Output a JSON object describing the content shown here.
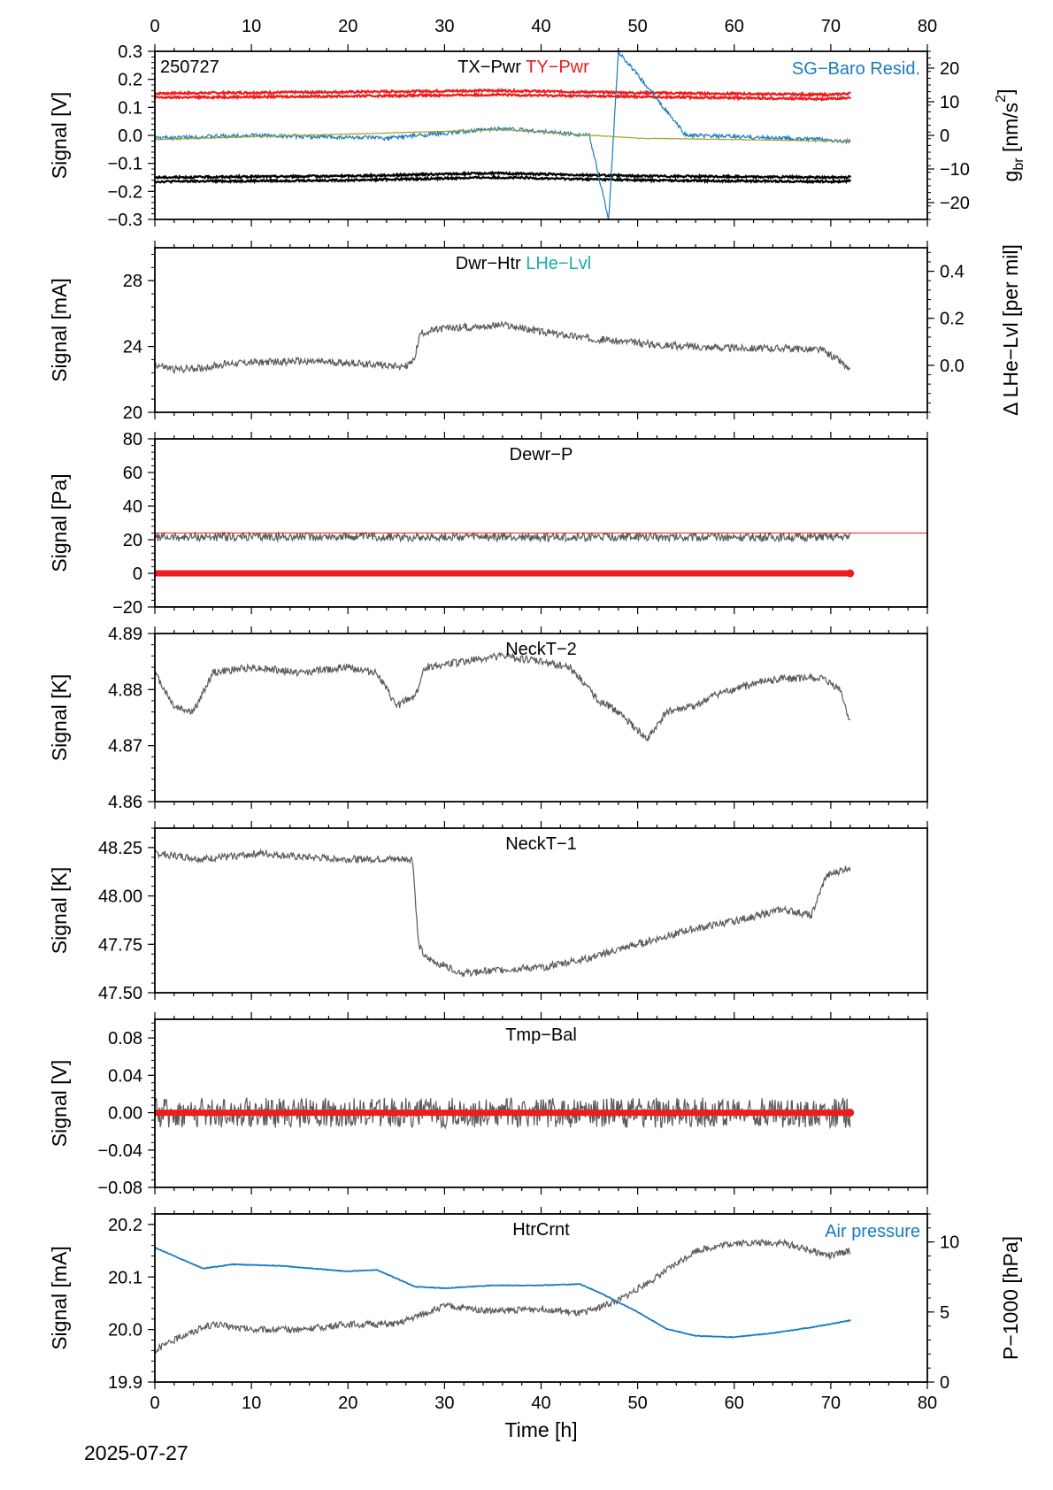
{
  "figure": {
    "date_label": "2025-07-27",
    "top_axis_ticks": [
      "0",
      "10",
      "20",
      "30",
      "40",
      "50",
      "60",
      "70",
      "80"
    ]
  },
  "colors": {
    "trace": "#5a5a5a",
    "red": "#ee1c1c",
    "black": "#000000",
    "blue": "#1a7bbf",
    "olive": "#a8a028",
    "teal": "#1aaea8"
  },
  "chart_data": [
    {
      "id": "p1",
      "type": "line",
      "tag": "250727",
      "titles": [
        {
          "text": "TX−Pwr",
          "color": "#000000"
        },
        {
          "text": "TY−Pwr",
          "color": "#ee1c1c"
        }
      ],
      "legend_right": [
        {
          "text": "SG−Baro",
          "color": "#1a7bbf"
        },
        {
          "text": "Resid.",
          "color": "#1a7bbf"
        }
      ],
      "ylabel": "Signal [V]",
      "ylim": [
        -0.3,
        0.3
      ],
      "yticks": [
        "0.3",
        "0.2",
        "0.1",
        "0.0",
        "−0.1",
        "−0.2",
        "−0.3"
      ],
      "y2label": "g_br [nm/s2]",
      "y2label_main": "g",
      "y2label_sub": "br",
      "y2label_rest": " [nm/s",
      "y2label_sup": "2",
      "y2label_end": "]",
      "y2lim": [
        -25,
        25
      ],
      "y2ticks": [
        "20",
        "10",
        "0",
        "−10",
        "−20"
      ],
      "xlim": [
        0,
        80
      ],
      "series": [
        {
          "color": "#ee1c1c",
          "points": [
            [
              0,
              0.15
            ],
            [
              20,
              0.155
            ],
            [
              35,
              0.16
            ],
            [
              50,
              0.152
            ],
            [
              70,
              0.145
            ],
            [
              72,
              0.15
            ]
          ]
        },
        {
          "color": "#ee1c1c",
          "points": [
            [
              0,
              0.135
            ],
            [
              20,
              0.14
            ],
            [
              35,
              0.145
            ],
            [
              50,
              0.138
            ],
            [
              70,
              0.13
            ],
            [
              72,
              0.135
            ]
          ]
        },
        {
          "color": "#000000",
          "points": [
            [
              0,
              -0.15
            ],
            [
              20,
              -0.145
            ],
            [
              35,
              -0.135
            ],
            [
              50,
              -0.145
            ],
            [
              70,
              -0.15
            ],
            [
              72,
              -0.148
            ]
          ]
        },
        {
          "color": "#000000",
          "points": [
            [
              0,
              -0.165
            ],
            [
              20,
              -0.16
            ],
            [
              35,
              -0.15
            ],
            [
              50,
              -0.16
            ],
            [
              70,
              -0.165
            ],
            [
              72,
              -0.163
            ]
          ]
        },
        {
          "color": "#1a7bbf",
          "points": [
            [
              0,
              -0.01
            ],
            [
              10,
              0.0
            ],
            [
              24,
              -0.01
            ],
            [
              36,
              0.025
            ],
            [
              45,
              0.0
            ],
            [
              47,
              -0.3
            ],
            [
              48,
              0.3
            ],
            [
              55,
              0.0
            ],
            [
              65,
              -0.01
            ],
            [
              72,
              -0.02
            ]
          ]
        },
        {
          "color": "#a8a028",
          "points": [
            [
              0,
              -0.015
            ],
            [
              15,
              0.0
            ],
            [
              36,
              0.02
            ],
            [
              50,
              -0.01
            ],
            [
              70,
              -0.02
            ],
            [
              72,
              -0.02
            ]
          ]
        }
      ]
    },
    {
      "id": "p2",
      "type": "line",
      "titles": [
        {
          "text": "Dwr−Htr",
          "color": "#000000"
        },
        {
          "text": "LHe−Lvl",
          "color": "#1aaea8"
        }
      ],
      "ylabel": "Signal [mA]",
      "ylim": [
        20,
        30
      ],
      "yticks": [
        "28",
        "24",
        "20"
      ],
      "y2label": "Δ LHe−Lvl [per mil]",
      "y2lim": [
        -0.2,
        0.5
      ],
      "y2ticks": [
        "0.4",
        "0.2",
        "0.0"
      ],
      "xlim": [
        0,
        80
      ],
      "series": [
        {
          "color": "#5a5a5a",
          "points": [
            [
              0,
              22.9
            ],
            [
              2,
              22.6
            ],
            [
              5,
              22.7
            ],
            [
              8,
              23.0
            ],
            [
              15,
              23.1
            ],
            [
              20,
              23.0
            ],
            [
              26,
              22.8
            ],
            [
              26.8,
              23.1
            ],
            [
              27.5,
              24.8
            ],
            [
              30,
              25.1
            ],
            [
              36,
              25.3
            ],
            [
              40,
              24.9
            ],
            [
              45,
              24.5
            ],
            [
              50,
              24.2
            ],
            [
              55,
              24.0
            ],
            [
              60,
              23.9
            ],
            [
              65,
              23.9
            ],
            [
              69,
              23.8
            ],
            [
              71,
              23.1
            ],
            [
              72,
              22.5
            ]
          ]
        }
      ]
    },
    {
      "id": "p3",
      "type": "line",
      "titles": [
        {
          "text": "Dewr−P",
          "color": "#000000"
        }
      ],
      "ylabel": "Signal [Pa]",
      "ylim": [
        -20,
        80
      ],
      "yticks": [
        "80",
        "60",
        "40",
        "20",
        "0",
        "−20"
      ],
      "xlim": [
        0,
        80
      ],
      "series": [
        {
          "color": "#5a5a5a",
          "points": [
            [
              0,
              21.5
            ],
            [
              20,
              21.8
            ],
            [
              40,
              21.5
            ],
            [
              60,
              21.6
            ],
            [
              72,
              21.7
            ]
          ]
        },
        {
          "color": "#ee1c1c",
          "points": [
            [
              0,
              24.0
            ],
            [
              80,
              24.0
            ]
          ]
        },
        {
          "color": "#ee1c1c",
          "points": [
            [
              0,
              0
            ],
            [
              72,
              0
            ]
          ]
        }
      ]
    },
    {
      "id": "p4",
      "type": "line",
      "titles": [
        {
          "text": "NeckT−2",
          "color": "#000000"
        }
      ],
      "ylabel": "Signal [K]",
      "ylim": [
        4.86,
        4.89
      ],
      "yticks": [
        "4.89",
        "4.88",
        "4.87",
        "4.86"
      ],
      "xlim": [
        0,
        80
      ],
      "series": [
        {
          "color": "#5a5a5a",
          "points": [
            [
              0,
              4.883
            ],
            [
              2,
              4.877
            ],
            [
              4,
              4.876
            ],
            [
              6,
              4.883
            ],
            [
              10,
              4.884
            ],
            [
              15,
              4.883
            ],
            [
              20,
              4.884
            ],
            [
              23,
              4.883
            ],
            [
              25,
              4.877
            ],
            [
              27,
              4.879
            ],
            [
              28,
              4.884
            ],
            [
              32,
              4.885
            ],
            [
              36,
              4.886
            ],
            [
              40,
              4.885
            ],
            [
              43,
              4.884
            ],
            [
              46,
              4.878
            ],
            [
              48,
              4.876
            ],
            [
              51,
              4.871
            ],
            [
              53,
              4.876
            ],
            [
              56,
              4.877
            ],
            [
              58,
              4.879
            ],
            [
              62,
              4.881
            ],
            [
              65,
              4.882
            ],
            [
              69,
              4.882
            ],
            [
              71,
              4.88
            ],
            [
              72,
              4.874
            ]
          ]
        }
      ]
    },
    {
      "id": "p5",
      "type": "line",
      "titles": [
        {
          "text": "NeckT−1",
          "color": "#000000"
        }
      ],
      "ylabel": "Signal [K]",
      "ylim": [
        47.5,
        48.35
      ],
      "yticks": [
        "48.25",
        "48.00",
        "47.75",
        "47.50"
      ],
      "xlim": [
        0,
        80
      ],
      "series": [
        {
          "color": "#5a5a5a",
          "points": [
            [
              0,
              48.22
            ],
            [
              5,
              48.19
            ],
            [
              11,
              48.22
            ],
            [
              15,
              48.2
            ],
            [
              20,
              48.19
            ],
            [
              26.7,
              48.19
            ],
            [
              27.3,
              47.75
            ],
            [
              28,
              47.68
            ],
            [
              32,
              47.6
            ],
            [
              36,
              47.62
            ],
            [
              40,
              47.63
            ],
            [
              45,
              47.68
            ],
            [
              50,
              47.75
            ],
            [
              55,
              47.82
            ],
            [
              60,
              47.87
            ],
            [
              65,
              47.93
            ],
            [
              68,
              47.9
            ],
            [
              69.5,
              48.1
            ],
            [
              72,
              48.15
            ]
          ]
        }
      ]
    },
    {
      "id": "p6",
      "type": "line",
      "titles": [
        {
          "text": "Tmp−Bal",
          "color": "#000000"
        }
      ],
      "ylabel": "Signal [V]",
      "ylim": [
        -0.08,
        0.1
      ],
      "yticks": [
        "0.08",
        "0.04",
        "0.00",
        "−0.04",
        "−0.08"
      ],
      "xlim": [
        0,
        80
      ],
      "series": [
        {
          "color": "#5a5a5a",
          "points": [
            [
              0,
              0.0
            ],
            [
              72,
              0.0
            ]
          ]
        },
        {
          "color": "#ee1c1c",
          "points": [
            [
              0,
              0.0
            ],
            [
              72,
              0.0
            ]
          ]
        }
      ]
    },
    {
      "id": "p7",
      "type": "line",
      "titles": [
        {
          "text": "HtrCrnt",
          "color": "#000000"
        }
      ],
      "legend_right": [
        {
          "text": "Air pressure",
          "color": "#1a7bbf"
        }
      ],
      "ylabel": "Signal [mA]",
      "ylim": [
        19.9,
        20.22
      ],
      "yticks": [
        "20.2",
        "20.1",
        "20.0",
        "19.9"
      ],
      "y2label": "P−1000 [hPa]",
      "y2lim": [
        0,
        12
      ],
      "y2ticks": [
        "10",
        "5",
        "0"
      ],
      "xlim": [
        0,
        80
      ],
      "xlabel": "Time [h]",
      "xticks": [
        "0",
        "10",
        "20",
        "30",
        "40",
        "50",
        "60",
        "70",
        "80"
      ],
      "series": [
        {
          "color": "#5a5a5a",
          "points": [
            [
              0,
              19.96
            ],
            [
              3,
              19.99
            ],
            [
              6,
              20.01
            ],
            [
              10,
              20.0
            ],
            [
              15,
              20.0
            ],
            [
              20,
              20.01
            ],
            [
              25,
              20.01
            ],
            [
              30,
              20.045
            ],
            [
              35,
              20.035
            ],
            [
              40,
              20.04
            ],
            [
              44,
              20.03
            ],
            [
              48,
              20.055
            ],
            [
              52,
              20.1
            ],
            [
              56,
              20.15
            ],
            [
              60,
              20.165
            ],
            [
              65,
              20.165
            ],
            [
              70,
              20.14
            ],
            [
              72,
              20.15
            ]
          ]
        },
        {
          "color": "#1a7bbf",
          "axis": "y2",
          "points": [
            [
              0,
              9.6
            ],
            [
              2,
              9.0
            ],
            [
              5,
              8.1
            ],
            [
              8,
              8.4
            ],
            [
              13,
              8.3
            ],
            [
              20,
              7.9
            ],
            [
              23,
              8.0
            ],
            [
              27,
              6.8
            ],
            [
              30,
              6.7
            ],
            [
              35,
              6.9
            ],
            [
              40,
              6.9
            ],
            [
              44,
              7.0
            ],
            [
              46,
              6.4
            ],
            [
              50,
              5.0
            ],
            [
              53,
              3.8
            ],
            [
              56,
              3.3
            ],
            [
              60,
              3.2
            ],
            [
              64,
              3.5
            ],
            [
              68,
              3.9
            ],
            [
              72,
              4.4
            ]
          ]
        }
      ]
    }
  ]
}
